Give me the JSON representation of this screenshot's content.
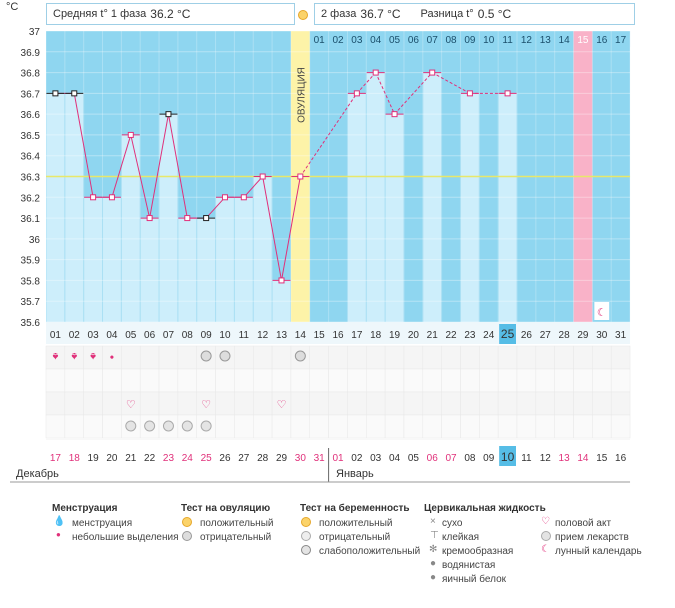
{
  "header": {
    "y_unit": "°C",
    "phase1_label": "Средняя t° 1 фаза",
    "phase1_value": "36.2 °C",
    "phase2_label": "2 фаза",
    "phase2_value": "36.7 °C",
    "diff_label": "Разница t°",
    "diff_value": "0.5 °C",
    "ovulation_label": "ОВУЛЯЦИЯ"
  },
  "chart_data": {
    "type": "line",
    "y_range": [
      35.6,
      37.0
    ],
    "y_ticks": [
      "35.6",
      "35.7",
      "35.8",
      "35.9",
      "36",
      "36.1",
      "36.2",
      "36.3",
      "36.4",
      "36.5",
      "36.6",
      "36.7",
      "36.8",
      "36.9",
      "37"
    ],
    "cycle_days": [
      "01",
      "02",
      "03",
      "04",
      "05",
      "06",
      "07",
      "08",
      "09",
      "10",
      "11",
      "12",
      "13",
      "14",
      "15",
      "16",
      "17",
      "18",
      "19",
      "20",
      "21",
      "22",
      "23",
      "24",
      "25",
      "26",
      "27",
      "28",
      "29",
      "30",
      "31"
    ],
    "calendar_dates": [
      "17",
      "18",
      "19",
      "20",
      "21",
      "22",
      "23",
      "24",
      "25",
      "26",
      "27",
      "28",
      "29",
      "30",
      "31",
      "01",
      "02",
      "03",
      "04",
      "05",
      "06",
      "07",
      "08",
      "09",
      "10",
      "11",
      "12",
      "13",
      "14",
      "15",
      "16"
    ],
    "weekend_dates_idx": [
      0,
      1,
      6,
      7,
      8,
      13,
      14,
      15,
      20,
      21,
      27,
      28
    ],
    "month_labels": [
      "Декабрь",
      "Январь"
    ],
    "temperatures": [
      36.7,
      36.7,
      36.2,
      36.2,
      36.5,
      36.1,
      36.6,
      36.1,
      36.1,
      36.2,
      36.2,
      36.3,
      35.8,
      36.3,
      null,
      null,
      36.7,
      36.8,
      36.6,
      null,
      36.8,
      null,
      36.7,
      null,
      36.7,
      null,
      null,
      null,
      null,
      null,
      null
    ],
    "ovulation_day": 14,
    "cover_line": 36.3,
    "today_day": 25,
    "menstruation": [
      "heavy",
      "heavy",
      "heavy",
      "light"
    ],
    "second_phase_days": [
      "01",
      "02",
      "03",
      "04",
      "05",
      "06",
      "07",
      "08",
      "09",
      "10",
      "11",
      "12",
      "13",
      "14",
      "15",
      "16",
      "17"
    ],
    "highlight_second_phase": 15
  },
  "legend": {
    "menstruation": {
      "title": "Менструация",
      "items": [
        "менструация",
        "небольшие выделения"
      ]
    },
    "ovulation_test": {
      "title": "Тест на овуляцию",
      "items": [
        "положительный",
        "отрицательный"
      ]
    },
    "pregnancy_test": {
      "title": "Тест на беременность",
      "items": [
        "положительный",
        "отрицательный",
        "слабоположительный"
      ]
    },
    "cervical_fluid": {
      "title": "Цервикальная жидкость",
      "items": [
        "сухо",
        "клейкая",
        "кремообразная",
        "водянистая",
        "яичный белок"
      ]
    },
    "other": {
      "items": [
        "половой акт",
        "прием лекарств",
        "лунный календарь"
      ]
    }
  },
  "colors": {
    "bg_blue": "#8fd6f0",
    "bar": "#cdeefb",
    "line": "#e0307a",
    "ovulation": "#fdf3a8",
    "highlight": "#f9b2c8",
    "cover": "#e8e86a",
    "today": "#56bde6",
    "weekend": "#e0307a"
  }
}
